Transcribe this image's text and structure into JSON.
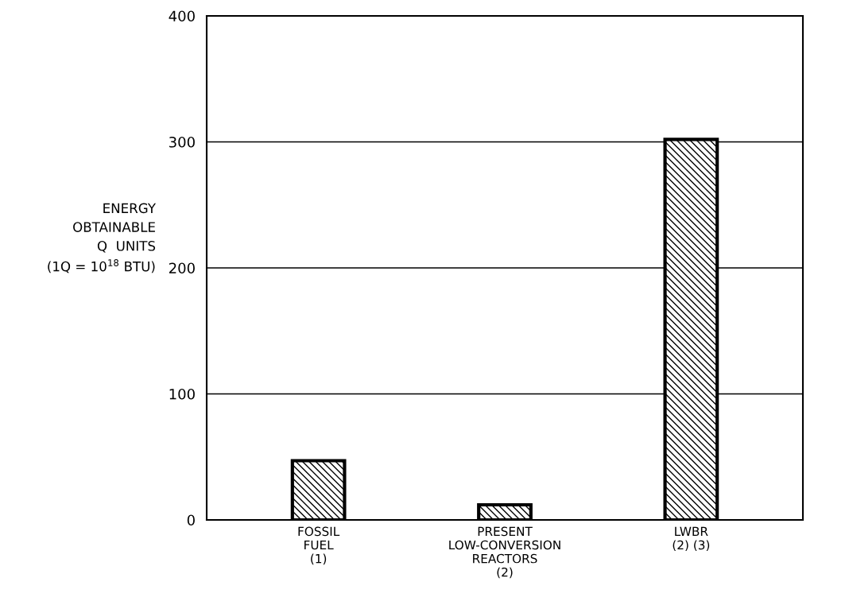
{
  "chart_data": {
    "type": "bar",
    "categories": [
      "FOSSIL\nFUEL\n(1)",
      "PRESENT\nLOW-CONVERSION\nREACTORS\n(2)",
      "LWBR\n(2) (3)"
    ],
    "values": [
      47,
      12,
      302
    ],
    "color": "#000000",
    "ylabel": "ENERGY\nOBTAINABLE\nQ  UNITS\n(1Q = 10$^{18}$ BTU)",
    "ylim": [
      0,
      400
    ],
    "yticks": [
      0,
      100,
      200,
      300,
      400
    ],
    "grid": "y"
  }
}
